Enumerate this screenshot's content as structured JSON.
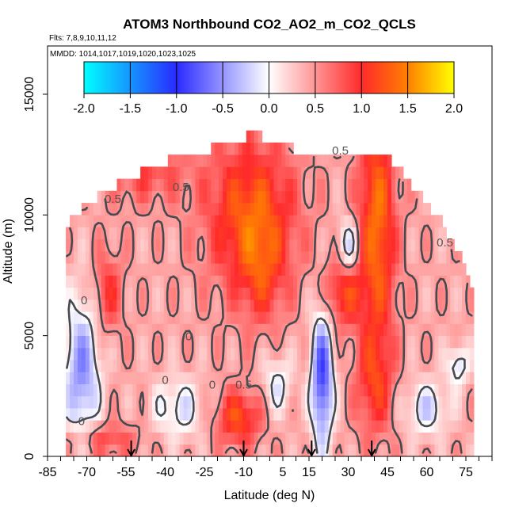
{
  "chart_data": {
    "type": "heatmap",
    "title": "ATOM3 Northbound CO2_AO2_m_CO2_QCLS",
    "subtitle_flights": "Flts: 7,8,9,10,11,12",
    "subtitle_dates": "MMDD: 1014,1017,1019,1020,1023,1025",
    "xlabel": "Latitude (deg N)",
    "ylabel": "Altitude (m)",
    "xlim": [
      -85,
      85
    ],
    "ylim": [
      0,
      17000
    ],
    "x_ticks": [
      -85,
      -70,
      -55,
      -40,
      -25,
      -10,
      5,
      15,
      30,
      45,
      60,
      75
    ],
    "y_ticks": [
      0,
      5000,
      10000,
      15000
    ],
    "x_tick_labels": [
      "-85",
      "-70",
      "-55",
      "-40",
      "-25",
      "-10",
      "5",
      "15",
      "30",
      "45",
      "60",
      "75"
    ],
    "y_tick_labels": [
      "0",
      "5000",
      "10000",
      "15000"
    ],
    "colorbar": {
      "min": -2.0,
      "max": 2.0,
      "ticks": [
        -2.0,
        -1.5,
        -1.0,
        -0.5,
        0.0,
        0.5,
        1.0,
        1.5,
        2.0
      ],
      "tick_labels": [
        "-2.0",
        "-1.5",
        "-1.0",
        "-0.5",
        "0.0",
        "0.5",
        "1.0",
        "1.5",
        "2.0"
      ],
      "colors": [
        "#00ffff",
        "#2a2aff",
        "#ffffff",
        "#ff2a2a",
        "#ff8000",
        "#ffff00"
      ]
    },
    "contour_labels": [
      {
        "text": "0.5",
        "lat": -60,
        "alt": 10500
      },
      {
        "text": "0.5",
        "lat": -34,
        "alt": 11000
      },
      {
        "text": "0.5",
        "lat": 27,
        "alt": 12500
      },
      {
        "text": "0.5",
        "lat": 67,
        "alt": 8700
      },
      {
        "text": "0",
        "lat": -71,
        "alt": 6300
      },
      {
        "text": "0",
        "lat": -31,
        "alt": 4800
      },
      {
        "text": "0",
        "lat": -40,
        "alt": 3000
      },
      {
        "text": "0",
        "lat": -22,
        "alt": 2800
      },
      {
        "text": "0",
        "lat": -72,
        "alt": 1300
      },
      {
        "text": "0.5",
        "lat": -10,
        "alt": 2800
      }
    ],
    "flight_arrows_lat": [
      -53,
      -10,
      16,
      39
    ],
    "max_altitude_by_lat": [
      [
        -78,
        9500
      ],
      [
        -70,
        10500
      ],
      [
        -62,
        11000
      ],
      [
        -54,
        11500
      ],
      [
        -46,
        12000
      ],
      [
        -38,
        12300
      ],
      [
        -30,
        12600
      ],
      [
        -20,
        12800
      ],
      [
        -14,
        12900
      ],
      [
        -6,
        13400
      ],
      [
        4,
        12800
      ],
      [
        14,
        12700
      ],
      [
        24,
        12700
      ],
      [
        34,
        12700
      ],
      [
        44,
        12700
      ],
      [
        50,
        11800
      ],
      [
        56,
        11000
      ],
      [
        64,
        10000
      ],
      [
        72,
        8500
      ],
      [
        78,
        7000
      ]
    ],
    "anomaly_field": {
      "background": 0.42,
      "features": [
        {
          "lat": -7,
          "alt": 10000,
          "amp": 0.9,
          "sx": 12,
          "sy": 2200
        },
        {
          "lat": 41,
          "alt": 9500,
          "amp": 1.0,
          "sx": 5,
          "sy": 3500
        },
        {
          "lat": -62,
          "alt": 6800,
          "amp": 0.55,
          "sx": 4,
          "sy": 1200
        },
        {
          "lat": 28,
          "alt": 6800,
          "amp": 0.75,
          "sx": 5,
          "sy": 1000
        },
        {
          "lat": -3,
          "alt": 7500,
          "amp": 0.45,
          "sx": 6,
          "sy": 1500
        },
        {
          "lat": -48,
          "alt": 11800,
          "amp": 0.45,
          "sx": 12,
          "sy": 900
        },
        {
          "lat": -12,
          "alt": 1600,
          "amp": 0.8,
          "sx": 6,
          "sy": 800
        },
        {
          "lat": -65,
          "alt": 700,
          "amp": 0.5,
          "sx": 10,
          "sy": 500
        },
        {
          "lat": 40,
          "alt": 3000,
          "amp": 0.6,
          "sx": 5,
          "sy": 1500
        },
        {
          "lat": -72,
          "alt": 3500,
          "amp": -0.95,
          "sx": 5,
          "sy": 2200
        },
        {
          "lat": 20,
          "alt": 3200,
          "amp": -1.3,
          "sx": 3,
          "sy": 2000
        },
        {
          "lat": -35,
          "alt": 2000,
          "amp": -0.55,
          "sx": 7,
          "sy": 900
        },
        {
          "lat": 60,
          "alt": 2000,
          "amp": -0.6,
          "sx": 6,
          "sy": 800
        },
        {
          "lat": 72,
          "alt": 3800,
          "amp": -0.6,
          "sx": 3,
          "sy": 600
        },
        {
          "lat": 30,
          "alt": 8700,
          "amp": -0.7,
          "sx": 3,
          "sy": 800
        },
        {
          "lat": 3,
          "alt": 3000,
          "amp": -0.5,
          "sx": 4,
          "sy": 900
        }
      ]
    }
  }
}
